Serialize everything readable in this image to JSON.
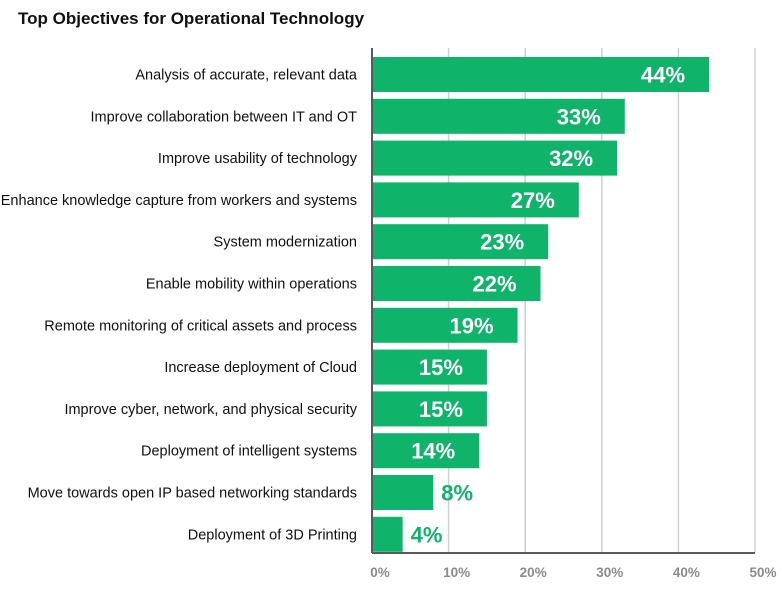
{
  "chart_data": {
    "type": "bar",
    "orientation": "horizontal",
    "title": "Top Objectives for Operational Technology",
    "categories": [
      "Analysis of accurate, relevant data",
      "Improve collaboration between IT and OT",
      "Improve usability of technology",
      "Enhance knowledge capture from workers and systems",
      "System modernization",
      "Enable mobility within operations",
      "Remote monitoring of critical assets and process",
      "Increase deployment of Cloud",
      "Improve cyber, network, and physical security",
      "Deployment of intelligent systems",
      "Move towards open IP based networking standards",
      "Deployment of 3D Printing"
    ],
    "values": [
      44,
      33,
      32,
      27,
      23,
      22,
      19,
      15,
      15,
      14,
      8,
      4
    ],
    "value_labels": [
      "44%",
      "33%",
      "32%",
      "27%",
      "23%",
      "22%",
      "19%",
      "15%",
      "15%",
      "14%",
      "8%",
      "4%"
    ],
    "xlim": [
      0,
      50
    ],
    "xticks": [
      0,
      10,
      20,
      30,
      40,
      50
    ],
    "xtick_labels": [
      "0%",
      "10%",
      "20%",
      "30%",
      "40%",
      "50%"
    ],
    "grid": "vertical",
    "colors": {
      "bar": "#0fb36a",
      "label_inside": "#ffffff",
      "label_outside": "#0fb36a",
      "grid": "#cfcfcf",
      "axis": "#5a5a5a",
      "tick_label": "#8a8a8a"
    }
  }
}
